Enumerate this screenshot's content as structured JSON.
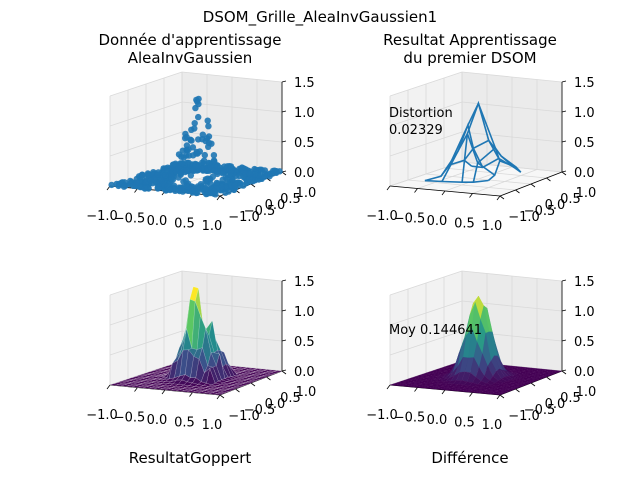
{
  "figure": {
    "suptitle": "DSOM_Grille_AleaInvGaussien1"
  },
  "colors": {
    "scatter": "#1f77b4",
    "wire": "#1f77b4",
    "viridis_low": "#440154",
    "viridis_mid": "#21918c",
    "viridis_high": "#fde725",
    "pane": "#f2f2f2",
    "grid": "#d9d9d9"
  },
  "chart_data": [
    {
      "type": "scatter",
      "title": "Donnée d'apprentissage\nAleaInvGaussien",
      "title_lines": [
        "Donnée d'apprentissage",
        "AleaInvGaussien"
      ],
      "x_ticks": [
        "−1.0",
        "−0.5",
        "0.0",
        "0.5",
        "1.0"
      ],
      "y_ticks": [
        "−1.0",
        "−0.5",
        "0.0",
        "0.5",
        "1.0"
      ],
      "z_ticks": [
        "0.0",
        "0.5",
        "1.0",
        "1.5"
      ],
      "xlim": [
        -1.0,
        1.0
      ],
      "ylim": [
        -1.0,
        1.0
      ],
      "zlim": [
        0.0,
        1.5
      ],
      "description": "3D scatter of training samples shaped as an inverted gaussian peak centred near (0,0), peak height about 1.4"
    },
    {
      "type": "line",
      "title": "Resultat Apprentissage\ndu premier DSOM",
      "title_lines": [
        "Resultat Apprentissage",
        "du premier DSOM"
      ],
      "annotation_lines": [
        "Distortion",
        "0.02329"
      ],
      "x_ticks": [
        "−1.0",
        "−0.5",
        "0.0",
        "0.5",
        "1.0"
      ],
      "y_ticks": [
        "−1.0",
        "−0.5",
        "0.0",
        "0.5",
        "1.0"
      ],
      "z_ticks": [
        "0.0",
        "0.5",
        "1.0",
        "1.5"
      ],
      "xlim": [
        -1.0,
        1.0
      ],
      "ylim": [
        -1.0,
        1.0
      ],
      "zlim": [
        0.0,
        1.5
      ],
      "description": "3D wireframe of the learned DSOM grid"
    },
    {
      "type": "heatmap",
      "title": "ResultatGoppert",
      "x_ticks": [
        "−1.0",
        "−0.5",
        "0.0",
        "0.5",
        "1.0"
      ],
      "y_ticks": [
        "−1.0",
        "−0.5",
        "0.0",
        "0.5",
        "1.0"
      ],
      "z_ticks": [
        "0.0",
        "0.5",
        "1.0",
        "1.5"
      ],
      "xlim": [
        -1.0,
        1.0
      ],
      "ylim": [
        -1.0,
        1.0
      ],
      "zlim": [
        0.0,
        1.5
      ],
      "description": "3D viridis surface of the Goppert result"
    },
    {
      "type": "heatmap",
      "title": "Différence",
      "annotation_lines": [
        "Moy 0.144641"
      ],
      "x_ticks": [
        "−1.0",
        "−0.5",
        "0.0",
        "0.5",
        "1.0"
      ],
      "y_ticks": [
        "−1.0",
        "−0.5",
        "0.0",
        "0.5",
        "1.0"
      ],
      "z_ticks": [
        "0.0",
        "0.5",
        "1.0",
        "1.5"
      ],
      "xlim": [
        -1.0,
        1.0
      ],
      "ylim": [
        -1.0,
        1.0
      ],
      "zlim": [
        0.0,
        1.5
      ],
      "description": "3D viridis surface of the difference"
    }
  ]
}
